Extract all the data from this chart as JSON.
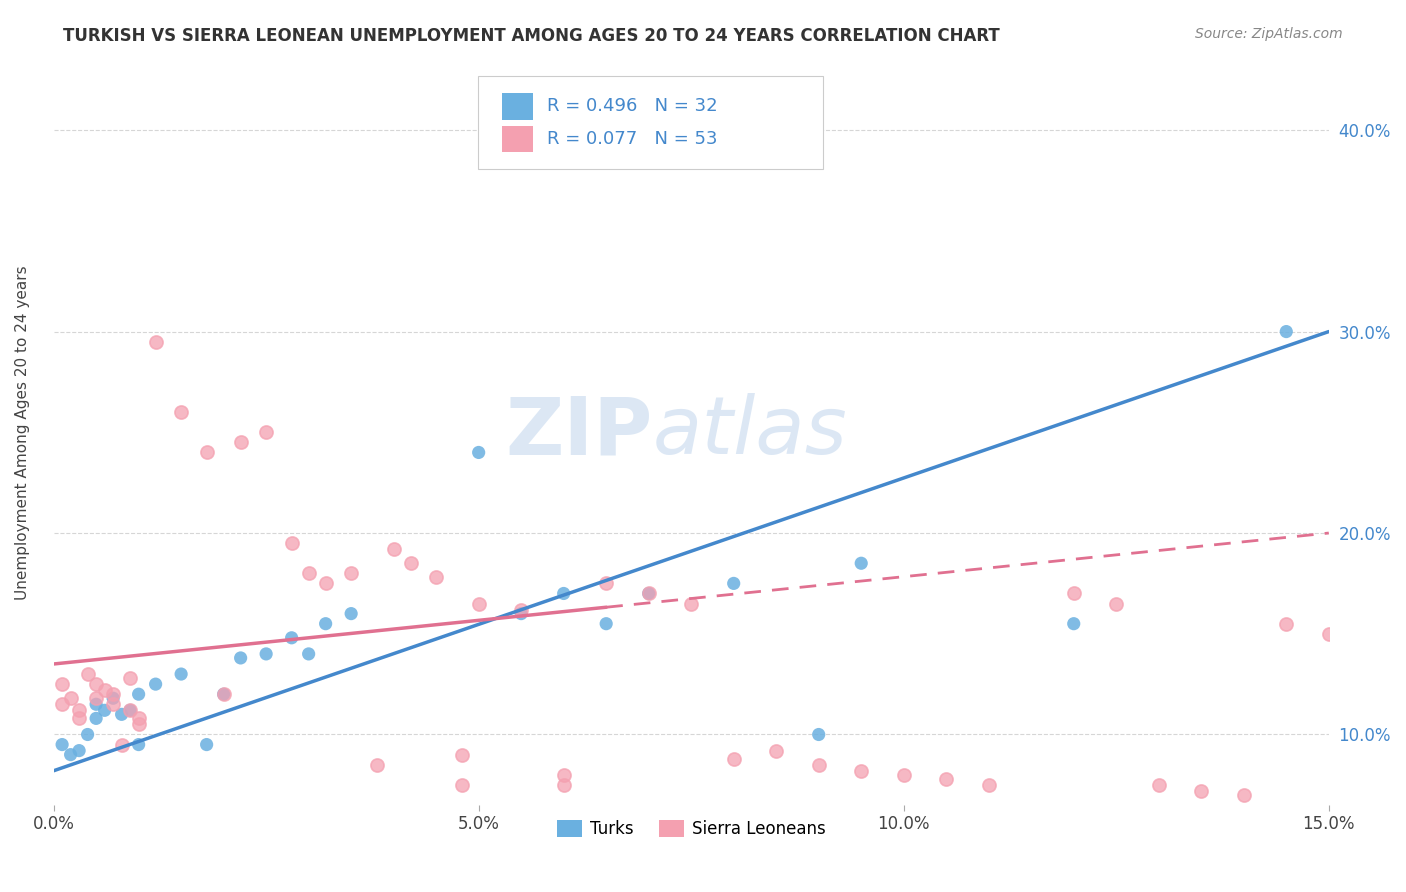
{
  "title": "TURKISH VS SIERRA LEONEAN UNEMPLOYMENT AMONG AGES 20 TO 24 YEARS CORRELATION CHART",
  "source_text": "Source: ZipAtlas.com",
  "ylabel": "Unemployment Among Ages 20 to 24 years",
  "xmin": 0.0,
  "xmax": 0.15,
  "ymin": 0.065,
  "ymax": 0.435,
  "right_yticks": [
    0.1,
    0.2,
    0.3,
    0.4
  ],
  "right_yticklabels": [
    "10.0%",
    "20.0%",
    "30.0%",
    "40.0%"
  ],
  "xticks": [
    0.0,
    0.05,
    0.1,
    0.15
  ],
  "xticklabels": [
    "0.0%",
    "5.0%",
    "10.0%",
    "15.0%"
  ],
  "turks_scatter_color": "#6ab0e0",
  "sierra_scatter_color": "#f4a0b0",
  "turks_line_color": "#4488cc",
  "sierra_line_color": "#e07090",
  "turks_R": 0.496,
  "turks_N": 32,
  "sierra_R": 0.077,
  "sierra_N": 53,
  "legend_label_turks": "Turks",
  "legend_label_sierra": "Sierra Leoneans",
  "watermark_zip": "ZIP",
  "watermark_atlas": "atlas",
  "background_color": "#ffffff",
  "turks_line_x0": 0.0,
  "turks_line_y0": 0.082,
  "turks_line_x1": 0.15,
  "turks_line_y1": 0.3,
  "sierra_line_x0": 0.0,
  "sierra_line_y0": 0.135,
  "sierra_line_x1": 0.15,
  "sierra_line_y1": 0.2,
  "turks_x": [
    0.001,
    0.002,
    0.003,
    0.004,
    0.005,
    0.005,
    0.006,
    0.007,
    0.008,
    0.009,
    0.01,
    0.01,
    0.012,
    0.015,
    0.018,
    0.02,
    0.022,
    0.025,
    0.028,
    0.03,
    0.032,
    0.035,
    0.05,
    0.055,
    0.06,
    0.065,
    0.07,
    0.08,
    0.09,
    0.095,
    0.12,
    0.145
  ],
  "turks_y": [
    0.095,
    0.09,
    0.092,
    0.1,
    0.108,
    0.115,
    0.112,
    0.118,
    0.11,
    0.112,
    0.12,
    0.095,
    0.125,
    0.13,
    0.095,
    0.12,
    0.138,
    0.14,
    0.148,
    0.14,
    0.155,
    0.16,
    0.24,
    0.16,
    0.17,
    0.155,
    0.17,
    0.175,
    0.1,
    0.185,
    0.155,
    0.3
  ],
  "sierra_x": [
    0.001,
    0.001,
    0.002,
    0.003,
    0.003,
    0.004,
    0.005,
    0.005,
    0.006,
    0.007,
    0.007,
    0.008,
    0.009,
    0.009,
    0.01,
    0.01,
    0.012,
    0.015,
    0.018,
    0.02,
    0.022,
    0.025,
    0.028,
    0.03,
    0.032,
    0.035,
    0.038,
    0.04,
    0.042,
    0.045,
    0.048,
    0.05,
    0.055,
    0.06,
    0.065,
    0.07,
    0.075,
    0.08,
    0.085,
    0.09,
    0.095,
    0.1,
    0.105,
    0.11,
    0.12,
    0.125,
    0.13,
    0.135,
    0.14,
    0.145,
    0.048,
    0.06,
    0.15
  ],
  "sierra_y": [
    0.125,
    0.115,
    0.118,
    0.112,
    0.108,
    0.13,
    0.125,
    0.118,
    0.122,
    0.115,
    0.12,
    0.095,
    0.128,
    0.112,
    0.105,
    0.108,
    0.295,
    0.26,
    0.24,
    0.12,
    0.245,
    0.25,
    0.195,
    0.18,
    0.175,
    0.18,
    0.085,
    0.192,
    0.185,
    0.178,
    0.09,
    0.165,
    0.162,
    0.08,
    0.175,
    0.17,
    0.165,
    0.088,
    0.092,
    0.085,
    0.082,
    0.08,
    0.078,
    0.075,
    0.17,
    0.165,
    0.075,
    0.072,
    0.07,
    0.155,
    0.075,
    0.075,
    0.15
  ]
}
